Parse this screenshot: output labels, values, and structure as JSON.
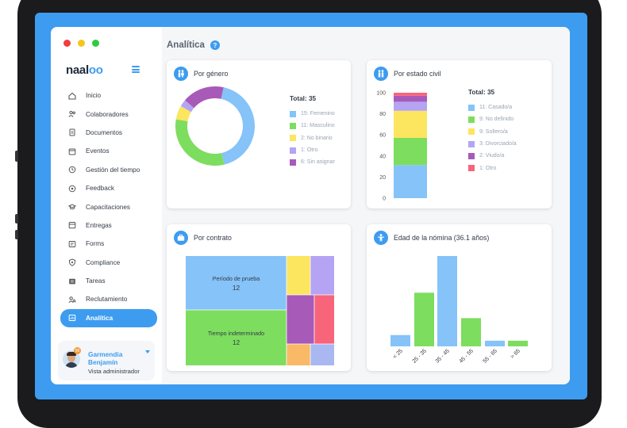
{
  "window": {
    "dots": [
      "#f03d3d",
      "#f5c518",
      "#2ecc40"
    ]
  },
  "brand": {
    "logo_text": "naal",
    "logo_owl": "oo"
  },
  "colors": {
    "accent": "#3d9cf0",
    "blue": "#85c3f8",
    "green": "#7ddd5f",
    "yellow": "#fce55f",
    "lavender": "#b4a4f3",
    "purple": "#a85ab8",
    "red": "#f8647a",
    "orange": "#f9b967"
  },
  "sidebar": {
    "items": [
      {
        "label": "Inicio",
        "icon": "home-icon"
      },
      {
        "label": "Colaboradores",
        "icon": "users-icon"
      },
      {
        "label": "Documentos",
        "icon": "document-icon"
      },
      {
        "label": "Eventos",
        "icon": "calendar-icon"
      },
      {
        "label": "Gestión del tiempo",
        "icon": "clock-icon"
      },
      {
        "label": "Feedback",
        "icon": "feedback-icon"
      },
      {
        "label": "Capacitaciones",
        "icon": "graduation-icon"
      },
      {
        "label": "Entregas",
        "icon": "box-icon"
      },
      {
        "label": "Forms",
        "icon": "form-icon"
      },
      {
        "label": "Compliance",
        "icon": "shield-icon"
      },
      {
        "label": "Tareas",
        "icon": "tasks-icon"
      },
      {
        "label": "Reclutamiento",
        "icon": "recruit-icon"
      },
      {
        "label": "Analítica",
        "icon": "analytics-icon",
        "active": true
      }
    ]
  },
  "user": {
    "first_name": "Garmendia",
    "last_name": "Benjamín",
    "role": "Vista administrador",
    "badge": "99"
  },
  "page": {
    "title": "Analítica",
    "help": "?"
  },
  "cards": {
    "genero": {
      "title": "Por género"
    },
    "estado_civil": {
      "title": "Por estado civil"
    },
    "contrato": {
      "title": "Por contrato"
    },
    "edad": {
      "title": "Edad de la nómina (36.1 años)"
    }
  },
  "chart_data": [
    {
      "type": "pie",
      "title": "Por género",
      "total_label": "Total: 35",
      "slices": [
        {
          "label": "15: Femenino",
          "value": 15,
          "color": "#85c3f8"
        },
        {
          "label": "11: Masculino",
          "value": 11,
          "color": "#7ddd5f"
        },
        {
          "label": "2: No binario",
          "value": 2,
          "color": "#fce55f"
        },
        {
          "label": "1: Otro",
          "value": 1,
          "color": "#b4a4f3"
        },
        {
          "label": "6: Sin asignar",
          "value": 6,
          "color": "#a85ab8"
        }
      ]
    },
    {
      "type": "bar",
      "title": "Por estado civil",
      "total_label": "Total: 35",
      "ylim": [
        0,
        100
      ],
      "yticks": [
        "0",
        "20",
        "40",
        "60",
        "80",
        "100"
      ],
      "series": [
        {
          "label": "11: Casado/a",
          "value": 11,
          "color": "#85c3f8"
        },
        {
          "label": "9: No definido",
          "value": 9,
          "color": "#7ddd5f"
        },
        {
          "label": "9: Soltero/a",
          "value": 9,
          "color": "#fce55f"
        },
        {
          "label": "3: Divorciado/a",
          "value": 3,
          "color": "#b4a4f3"
        },
        {
          "label": "2: Viudo/a",
          "value": 2,
          "color": "#a85ab8"
        },
        {
          "label": "1: Otro",
          "value": 1,
          "color": "#f8647a"
        }
      ]
    },
    {
      "type": "heatmap",
      "title": "Por contrato",
      "cells": [
        {
          "label": "Período de prueba",
          "value": "12",
          "color": "#85c3f8"
        },
        {
          "label": "Tiempo indeterminado",
          "value": "12",
          "color": "#7ddd5f"
        },
        {
          "label": "",
          "value": "",
          "color": "#fce55f"
        },
        {
          "label": "",
          "value": "",
          "color": "#b4a4f3"
        },
        {
          "label": "",
          "value": "",
          "color": "#a85ab8"
        },
        {
          "label": "",
          "value": "",
          "color": "#f8647a"
        },
        {
          "label": "",
          "value": "",
          "color": "#f9b967"
        },
        {
          "label": "",
          "value": "",
          "color": "#a9b8f0"
        }
      ]
    },
    {
      "type": "bar",
      "title": "Edad de la nómina (36.1 años)",
      "categories": [
        "< 25",
        "25 - 35",
        "35 - 45",
        "45 - 55",
        "55 - 65",
        "> 65"
      ],
      "values": [
        4,
        19,
        32,
        10,
        2,
        2
      ],
      "colors": [
        "#85c3f8",
        "#7ddd5f",
        "#85c3f8",
        "#7ddd5f",
        "#85c3f8",
        "#7ddd5f"
      ]
    }
  ]
}
